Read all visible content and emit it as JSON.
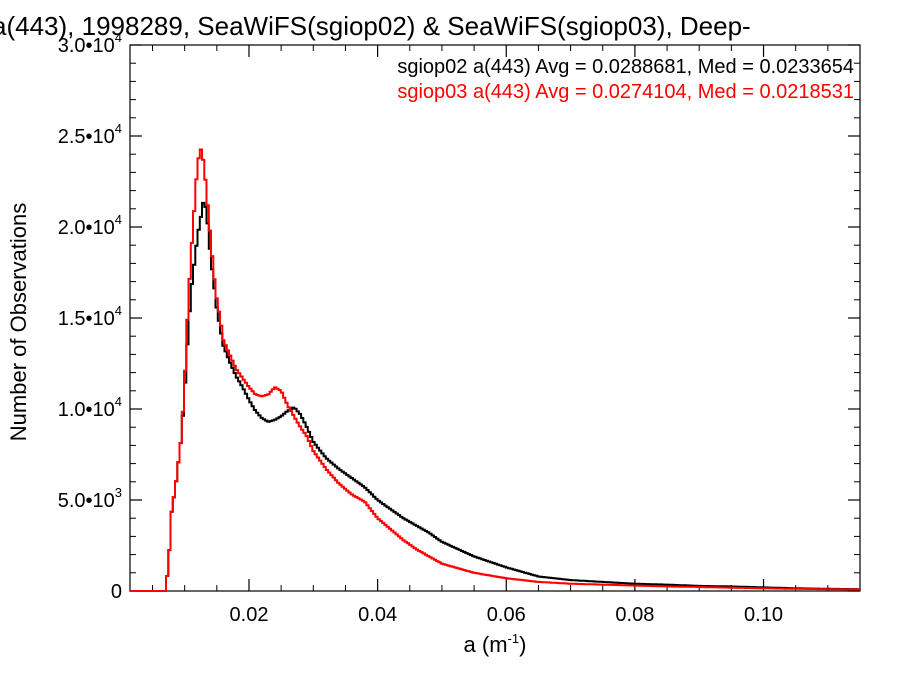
{
  "chart_data": {
    "type": "line",
    "title": "a(443), 1998289, SeaWiFS(sgiop02) & SeaWiFS(sgiop03), Deep-",
    "xlabel": "a (m",
    "xlabel_sup": "-1",
    "xlabel_suffix": ")",
    "ylabel": "Number of Observations",
    "xlim": [
      0.0015,
      0.115
    ],
    "ylim": [
      0,
      30000
    ],
    "xticks": [
      {
        "value": 0.02,
        "label": "0.02"
      },
      {
        "value": 0.04,
        "label": "0.04"
      },
      {
        "value": 0.06,
        "label": "0.06"
      },
      {
        "value": 0.08,
        "label": "0.08"
      },
      {
        "value": 0.1,
        "label": "0.10"
      }
    ],
    "yticks": [
      {
        "value": 0,
        "base": "0",
        "exp": ""
      },
      {
        "value": 5000,
        "base": "5.0•10",
        "exp": "3"
      },
      {
        "value": 10000,
        "base": "1.0•10",
        "exp": "4"
      },
      {
        "value": 15000,
        "base": "1.5•10",
        "exp": "4"
      },
      {
        "value": 20000,
        "base": "2.0•10",
        "exp": "4"
      },
      {
        "value": 25000,
        "base": "2.5•10",
        "exp": "4"
      },
      {
        "value": 30000,
        "base": "3.0•10",
        "exp": "4"
      }
    ],
    "legend_placement": "top-right",
    "series": [
      {
        "name": "sgiop02 a(443) Avg = 0.0288681, Med = 0.0233654",
        "color": "#000000",
        "x": [
          0.0015,
          0.007,
          0.0075,
          0.008,
          0.0085,
          0.009,
          0.0095,
          0.01,
          0.0105,
          0.011,
          0.0115,
          0.012,
          0.0125,
          0.013,
          0.0135,
          0.014,
          0.0145,
          0.015,
          0.0155,
          0.016,
          0.017,
          0.018,
          0.019,
          0.02,
          0.021,
          0.022,
          0.023,
          0.024,
          0.025,
          0.026,
          0.027,
          0.028,
          0.029,
          0.03,
          0.032,
          0.034,
          0.036,
          0.038,
          0.04,
          0.042,
          0.044,
          0.046,
          0.048,
          0.05,
          0.055,
          0.06,
          0.065,
          0.07,
          0.075,
          0.08,
          0.085,
          0.09,
          0.095,
          0.1,
          0.105,
          0.11,
          0.115
        ],
        "y": [
          0,
          0,
          1500,
          4500,
          5500,
          7000,
          8500,
          11000,
          14000,
          16500,
          18000,
          19500,
          20500,
          21600,
          20500,
          18500,
          17000,
          15500,
          14500,
          13500,
          12600,
          11800,
          11200,
          10500,
          9900,
          9500,
          9300,
          9400,
          9600,
          9900,
          10100,
          9700,
          9000,
          8200,
          7300,
          6700,
          6200,
          5700,
          5000,
          4500,
          4000,
          3600,
          3200,
          2700,
          1900,
          1300,
          800,
          600,
          500,
          400,
          350,
          280,
          250,
          200,
          150,
          120,
          100
        ]
      },
      {
        "name": "sgiop03 a(443) Avg = 0.0274104, Med = 0.0218531",
        "color": "#ff0000",
        "x": [
          0.0015,
          0.007,
          0.0075,
          0.008,
          0.0085,
          0.009,
          0.0095,
          0.01,
          0.0105,
          0.011,
          0.0115,
          0.012,
          0.0125,
          0.013,
          0.0135,
          0.014,
          0.0145,
          0.015,
          0.0155,
          0.016,
          0.017,
          0.018,
          0.019,
          0.02,
          0.021,
          0.022,
          0.023,
          0.024,
          0.025,
          0.026,
          0.027,
          0.028,
          0.029,
          0.03,
          0.032,
          0.034,
          0.036,
          0.038,
          0.04,
          0.042,
          0.044,
          0.046,
          0.048,
          0.05,
          0.055,
          0.06,
          0.065,
          0.07,
          0.075,
          0.08,
          0.085,
          0.09,
          0.095,
          0.1,
          0.105,
          0.11,
          0.115
        ],
        "y": [
          0,
          0,
          1500,
          4500,
          5500,
          7000,
          8500,
          11500,
          15500,
          18500,
          21000,
          23500,
          24300,
          23500,
          21500,
          19500,
          17500,
          16000,
          15000,
          13800,
          13000,
          12200,
          11700,
          11200,
          10800,
          10700,
          10800,
          11200,
          11000,
          10200,
          9600,
          9000,
          8500,
          7700,
          6700,
          5900,
          5300,
          4900,
          4000,
          3400,
          2800,
          2300,
          1900,
          1500,
          1000,
          700,
          500,
          400,
          350,
          300,
          250,
          220,
          180,
          150,
          120,
          100,
          80
        ]
      }
    ]
  }
}
